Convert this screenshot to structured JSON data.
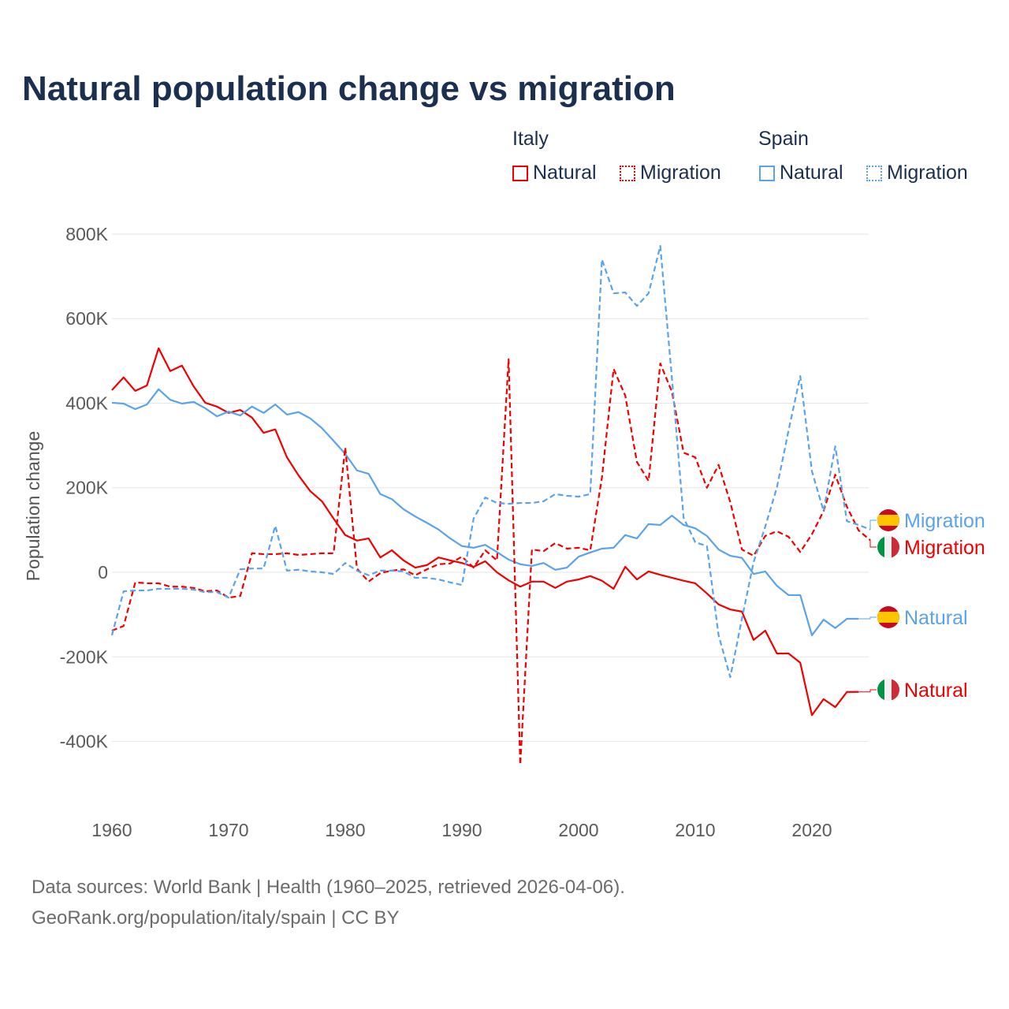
{
  "chart_data": {
    "type": "line",
    "title": "Natural population change vs migration",
    "xlabel": "",
    "ylabel": "Population change",
    "xlim": [
      1960,
      2025
    ],
    "ylim": [
      -500000,
      800000
    ],
    "grid": true,
    "x_ticks": [
      1960,
      1970,
      1980,
      1990,
      2000,
      2010,
      2020
    ],
    "x_tick_labels": [
      "1960",
      "1970",
      "1980",
      "1990",
      "2000",
      "2010",
      "2020"
    ],
    "y_ticks": [
      800000,
      600000,
      400000,
      200000,
      0,
      -200000,
      -400000
    ],
    "y_tick_labels": [
      "800K",
      "600K",
      "400K",
      "200K",
      "0",
      "-200K",
      "-400K"
    ],
    "legend": {
      "placement": "top-right",
      "groups": [
        {
          "label": "Italy",
          "items": [
            "Natural",
            "Migration"
          ]
        },
        {
          "label": "Spain",
          "items": [
            "Natural",
            "Migration"
          ]
        }
      ]
    },
    "series": [
      {
        "name": "Italy Natural",
        "country": "Italy",
        "label": "Natural",
        "color": "#f00000",
        "dash": false,
        "start_year": 1960,
        "values": [
          431,
          461,
          429,
          442,
          530,
          476,
          489,
          440,
          401,
          392,
          377,
          384,
          366,
          330,
          338,
          272,
          229,
          192,
          168,
          127,
          88,
          75,
          80,
          35,
          52,
          28,
          11,
          17,
          35,
          28,
          22,
          13,
          26,
          0,
          -19,
          -34,
          -22,
          -22,
          -37,
          -22,
          -17,
          -9,
          -20,
          -39,
          13,
          -17,
          2,
          -6,
          -13,
          -20,
          -26,
          -50,
          -76,
          -88,
          -93,
          -160,
          -138,
          -192,
          -192,
          -214,
          -338,
          -300,
          -319,
          -283,
          -283
        ]
      },
      {
        "name": "Spain Natural",
        "country": "Spain",
        "label": "Natural",
        "color": "#5ba3e8",
        "dash": false,
        "start_year": 1960,
        "values": [
          401,
          399,
          386,
          397,
          433,
          408,
          399,
          403,
          388,
          369,
          380,
          371,
          392,
          377,
          397,
          373,
          379,
          364,
          341,
          311,
          280,
          241,
          233,
          185,
          173,
          149,
          132,
          117,
          101,
          80,
          62,
          58,
          65,
          48,
          30,
          19,
          15,
          22,
          6,
          11,
          37,
          47,
          56,
          58,
          88,
          80,
          114,
          112,
          134,
          112,
          104,
          86,
          54,
          39,
          34,
          -4,
          2,
          -32,
          -54,
          -54,
          -149,
          -112,
          -132,
          -110,
          -110
        ]
      },
      {
        "name": "Italy Migration",
        "country": "Italy",
        "label": "Migration",
        "color": "#f00000",
        "dash": true,
        "start_year": 1960,
        "values": [
          -138,
          -127,
          -24,
          -26,
          -26,
          -34,
          -34,
          -37,
          -45,
          -43,
          -60,
          -56,
          45,
          43,
          43,
          45,
          41,
          43,
          45,
          45,
          295,
          9,
          -22,
          -2,
          4,
          7,
          -7,
          7,
          19,
          21,
          37,
          11,
          52,
          28,
          504,
          -455,
          54,
          50,
          69,
          56,
          58,
          52,
          224,
          481,
          418,
          261,
          216,
          494,
          427,
          283,
          272,
          200,
          254,
          166,
          54,
          39,
          86,
          97,
          84,
          48,
          90,
          145,
          231,
          155,
          99,
          76
        ]
      },
      {
        "name": "Spain Migration",
        "country": "Spain",
        "label": "Migration",
        "color": "#5ba3e8",
        "dash": true,
        "start_year": 1960,
        "values": [
          -149,
          -45,
          -43,
          -43,
          -39,
          -39,
          -39,
          -41,
          -47,
          -47,
          -60,
          7,
          9,
          9,
          110,
          4,
          6,
          2,
          0,
          -4,
          22,
          4,
          -7,
          4,
          4,
          2,
          -13,
          -13,
          -17,
          -24,
          -30,
          127,
          177,
          164,
          162,
          164,
          164,
          168,
          185,
          181,
          179,
          185,
          740,
          660,
          662,
          630,
          660,
          772,
          459,
          129,
          71,
          62,
          -149,
          -248,
          -110,
          24,
          108,
          201,
          336,
          464,
          239,
          145,
          298,
          121,
          112,
          101
        ]
      }
    ],
    "value_units": "thousands"
  },
  "footer": {
    "line1": "Data sources: World Bank | Health (1960–2025, retrieved 2026-04-06).",
    "line2": "GeoRank.org/population/italy/spain | CC BY"
  }
}
